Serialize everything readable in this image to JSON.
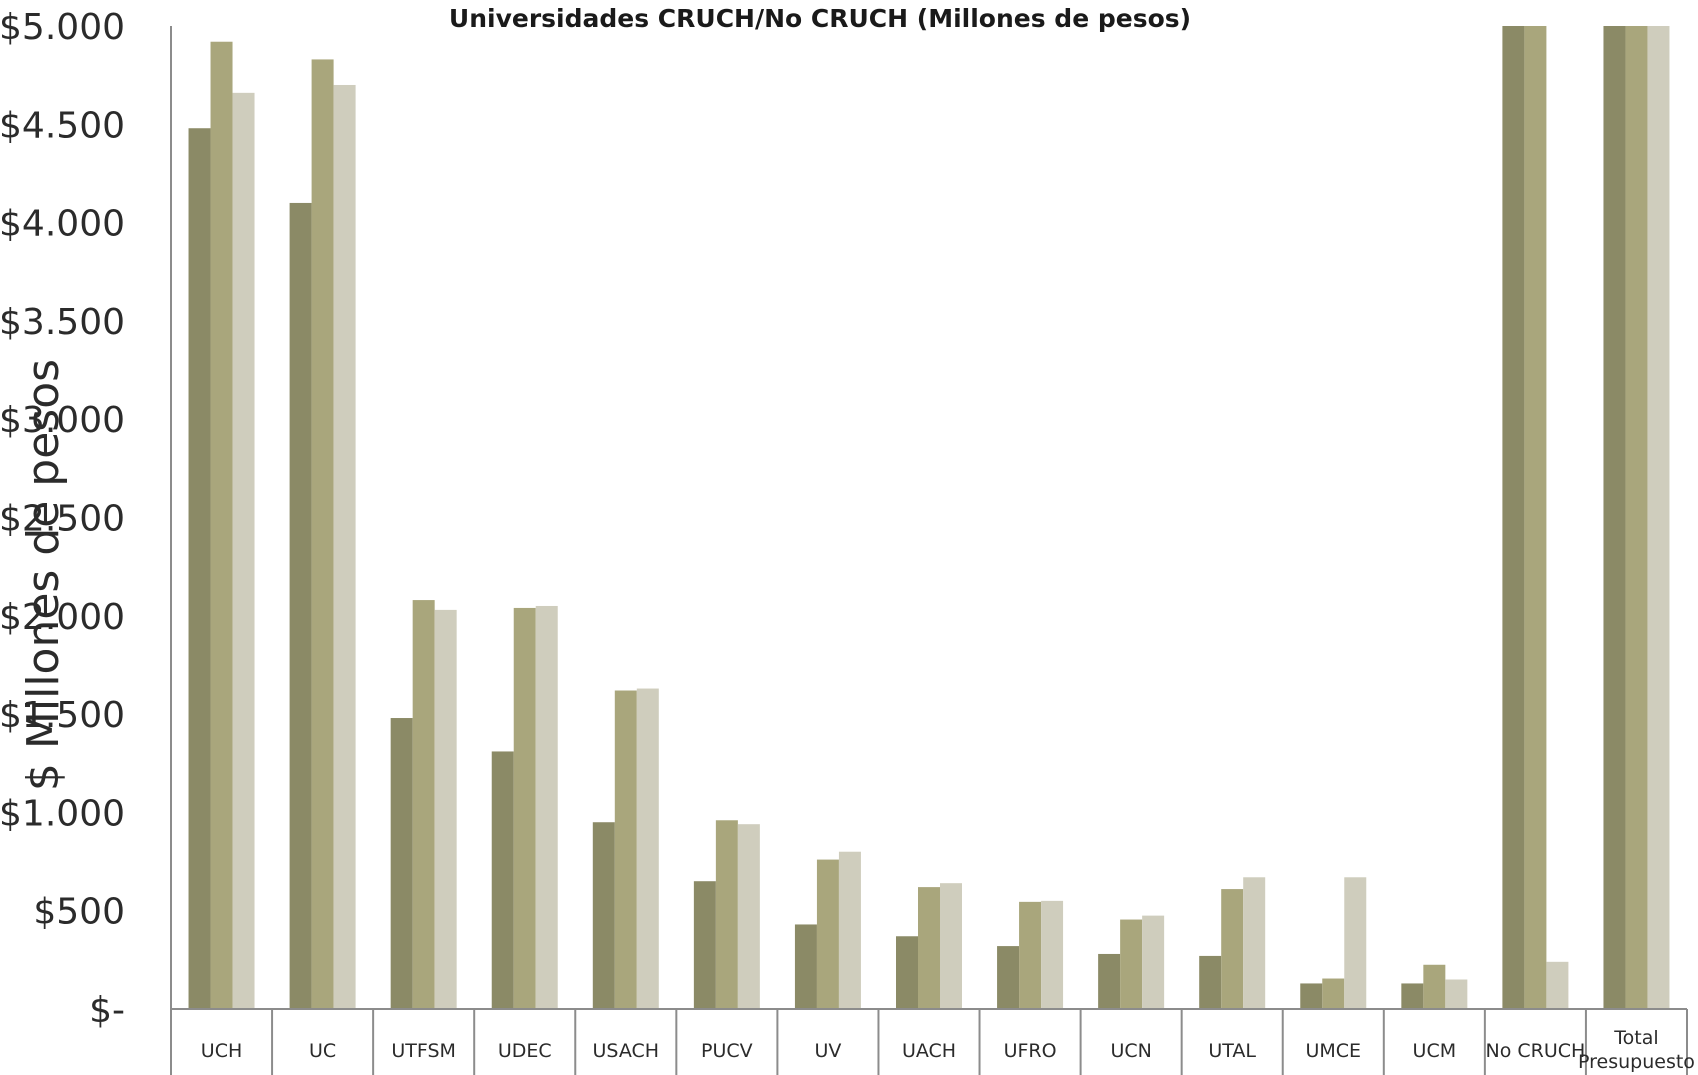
{
  "chart_data": {
    "type": "bar",
    "title": "Universidades CRUCH/No CRUCH (Millones de pesos)",
    "ylabel": "$ Millones de pesos",
    "xlabel": "",
    "ylim": [
      0,
      5000
    ],
    "yticks": [
      {
        "value": 0,
        "label": "$-"
      },
      {
        "value": 500,
        "label": "$500"
      },
      {
        "value": 1000,
        "label": "$1.000"
      },
      {
        "value": 1500,
        "label": "$1.500"
      },
      {
        "value": 2000,
        "label": "$2.000"
      },
      {
        "value": 2500,
        "label": "$2.500"
      },
      {
        "value": 3000,
        "label": "$3.000"
      },
      {
        "value": 3500,
        "label": "$3.500"
      },
      {
        "value": 4000,
        "label": "$4.000"
      },
      {
        "value": 4500,
        "label": "$4.500"
      },
      {
        "value": 5000,
        "label": "$5.000"
      }
    ],
    "categories": [
      "UCH",
      "UC",
      "UTFSM",
      "UDEC",
      "USACH",
      "PUCV",
      "UV",
      "UACH",
      "UFRO",
      "UCN",
      "UTAL",
      "UMCE",
      "UCM",
      "No CRUCH",
      "Total Presupuesto"
    ],
    "series": [
      {
        "color": "#8b8a66",
        "values": [
          4480,
          4100,
          1480,
          1310,
          950,
          650,
          430,
          370,
          320,
          280,
          270,
          130,
          130,
          5000,
          5000
        ]
      },
      {
        "color": "#a9a67c",
        "values": [
          4920,
          4830,
          2080,
          2040,
          1620,
          960,
          760,
          620,
          545,
          455,
          610,
          155,
          225,
          5000,
          5000
        ]
      },
      {
        "color": "#cfcdbd",
        "values": [
          4660,
          4700,
          2030,
          2050,
          1630,
          940,
          800,
          640,
          550,
          475,
          670,
          670,
          150,
          240,
          5000
        ]
      }
    ],
    "grid": false,
    "legend": "none"
  }
}
